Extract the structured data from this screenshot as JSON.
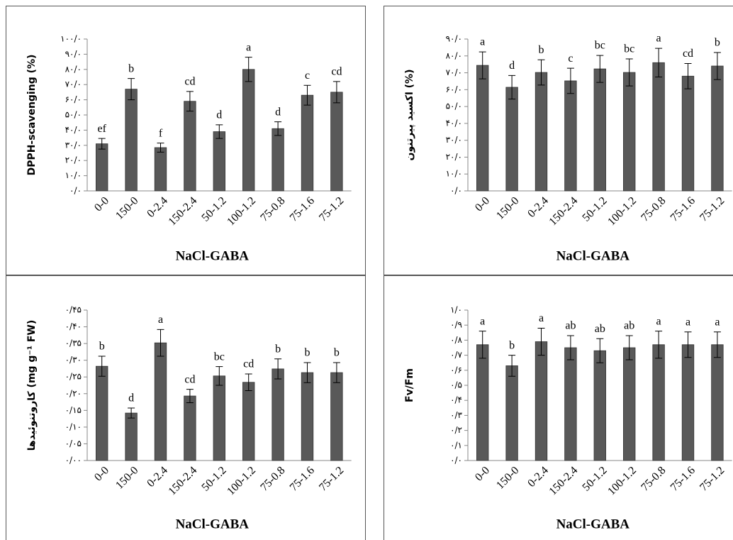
{
  "chart_data": [
    {
      "type": "bar",
      "x_label": "NaCl-GABA",
      "y_label": "DPPH-scavenging (%)",
      "color": "#595959",
      "categories": [
        "0-0",
        "150-0",
        "0-2.4",
        "150-2.4",
        "50-1.2",
        "100-1.2",
        "75-0.8",
        "75-1.6",
        "75-1.2"
      ],
      "values": [
        31,
        67,
        28.5,
        59,
        39,
        80,
        41,
        63,
        65
      ],
      "errors": [
        3.5,
        7,
        3,
        6.5,
        4.5,
        8,
        4.5,
        6.5,
        7
      ],
      "letters": [
        "ef",
        "b",
        "f",
        "cd",
        "d",
        "a",
        "d",
        "c",
        "cd"
      ],
      "ylim": [
        0,
        100
      ],
      "yticks": [
        {
          "value": 0,
          "label": "۰/۰"
        },
        {
          "value": 10,
          "label": "۱۰/۰"
        },
        {
          "value": 20,
          "label": "۲۰/۰"
        },
        {
          "value": 30,
          "label": "۳۰/۰"
        },
        {
          "value": 40,
          "label": "۴۰/۰"
        },
        {
          "value": 50,
          "label": "۵۰/۰"
        },
        {
          "value": 60,
          "label": "۶۰/۰"
        },
        {
          "value": 70,
          "label": "۷۰/۰"
        },
        {
          "value": 80,
          "label": "۸۰/۰"
        },
        {
          "value": 90,
          "label": "۹۰/۰"
        },
        {
          "value": 100,
          "label": "۱۰۰/۰"
        }
      ]
    },
    {
      "type": "bar",
      "x_label": "NaCl-GABA",
      "y_label": "اکسید پیرتنون (%)",
      "color": "#595959",
      "categories": [
        "0-0",
        "150-0",
        "0-2.4",
        "150-2.4",
        "50-1.2",
        "100-1.2",
        "75-0.8",
        "75-1.6",
        "75-1.2"
      ],
      "values": [
        74.4,
        61.4,
        70.2,
        65.2,
        72.3,
        70.2,
        76,
        68,
        74
      ],
      "errors": [
        8,
        7,
        7.5,
        7.5,
        8,
        8,
        8.5,
        7.5,
        8
      ],
      "letters": [
        "a",
        "d",
        "b",
        "c",
        "bc",
        "bc",
        "a",
        "cd",
        "b"
      ],
      "ylim": [
        0,
        90
      ],
      "yticks": [
        {
          "value": 0,
          "label": "۰/۰"
        },
        {
          "value": 10,
          "label": "۱۰/۰"
        },
        {
          "value": 20,
          "label": "۲۰/۰"
        },
        {
          "value": 30,
          "label": "۳۰/۰"
        },
        {
          "value": 40,
          "label": "۴۰/۰"
        },
        {
          "value": 50,
          "label": "۵۰/۰"
        },
        {
          "value": 60,
          "label": "۶۰/۰"
        },
        {
          "value": 70,
          "label": "۷۰/۰"
        },
        {
          "value": 80,
          "label": "۸۰/۰"
        },
        {
          "value": 90,
          "label": "۹۰/۰"
        }
      ]
    },
    {
      "type": "bar",
      "x_label": "NaCl-GABA",
      "y_label": "کاروتنوئیدها (mg g⁻¹ FW)",
      "color": "#595959",
      "categories": [
        "0-0",
        "150-0",
        "0-2.4",
        "150-2.4",
        "50-1.2",
        "100-1.2",
        "75-0.8",
        "75-1.6",
        "75-1.2"
      ],
      "values": [
        0.282,
        0.142,
        0.352,
        0.193,
        0.253,
        0.234,
        0.274,
        0.263,
        0.263
      ],
      "errors": [
        0.03,
        0.015,
        0.04,
        0.02,
        0.028,
        0.025,
        0.03,
        0.03,
        0.03
      ],
      "letters": [
        "b",
        "d",
        "a",
        "cd",
        "bc",
        "cd",
        "b",
        "b",
        "b"
      ],
      "ylim": [
        0,
        0.45
      ],
      "yticks": [
        {
          "value": 0,
          "label": "۰/۰۰"
        },
        {
          "value": 0.05,
          "label": "۰/۰۵"
        },
        {
          "value": 0.1,
          "label": "۰/۱۰"
        },
        {
          "value": 0.15,
          "label": "۰/۱۵"
        },
        {
          "value": 0.2,
          "label": "۰/۲۰"
        },
        {
          "value": 0.25,
          "label": "۰/۲۵"
        },
        {
          "value": 0.3,
          "label": "۰/۳۰"
        },
        {
          "value": 0.35,
          "label": "۰/۳۵"
        },
        {
          "value": 0.4,
          "label": "۰/۴۰"
        },
        {
          "value": 0.45,
          "label": "۰/۴۵"
        }
      ]
    },
    {
      "type": "bar",
      "x_label": "NaCl-GABA",
      "y_label": "Fv/Fm",
      "color": "#595959",
      "categories": [
        "0-0",
        "150-0",
        "0-2.4",
        "150-2.4",
        "50-1.2",
        "100-1.2",
        "75-0.8",
        "75-1.6",
        "75-1.2"
      ],
      "values": [
        0.77,
        0.63,
        0.79,
        0.75,
        0.73,
        0.75,
        0.77,
        0.77,
        0.77
      ],
      "errors": [
        0.09,
        0.07,
        0.09,
        0.08,
        0.08,
        0.08,
        0.09,
        0.085,
        0.085
      ],
      "letters": [
        "a",
        "b",
        "a",
        "ab",
        "ab",
        "ab",
        "a",
        "a",
        "a"
      ],
      "ylim": [
        0,
        1
      ],
      "yticks": [
        {
          "value": 0,
          "label": "۰/۰"
        },
        {
          "value": 0.1,
          "label": "۰/۱"
        },
        {
          "value": 0.2,
          "label": "۰/۲"
        },
        {
          "value": 0.3,
          "label": "۰/۳"
        },
        {
          "value": 0.4,
          "label": "۰/۴"
        },
        {
          "value": 0.5,
          "label": "۰/۵"
        },
        {
          "value": 0.6,
          "label": "۰/۶"
        },
        {
          "value": 0.7,
          "label": "۰/۷"
        },
        {
          "value": 0.8,
          "label": "۰/۸"
        },
        {
          "value": 0.9,
          "label": "۰/۹"
        },
        {
          "value": 1,
          "label": "۱/۰"
        }
      ]
    }
  ]
}
